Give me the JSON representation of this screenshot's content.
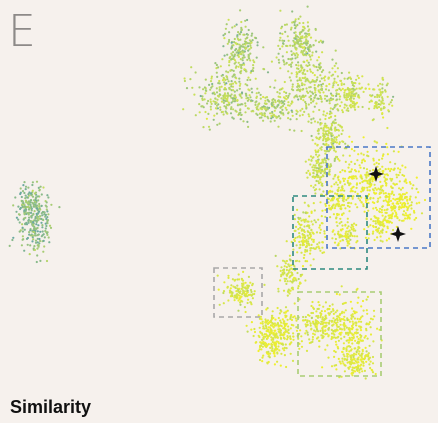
{
  "panel": {
    "letter": "E"
  },
  "legend": {
    "title": "Similarity"
  },
  "colors": {
    "background": "#f6f1ed",
    "low_similarity": "#6ba8a0",
    "mid_similarity": "#c8e05a",
    "high_similarity": "#f2f12a",
    "box_blue": "#4a78c6",
    "box_teal": "#2e8a80",
    "box_gray": "#a8a8a8",
    "box_green": "#a9cd74",
    "marker": "#111111"
  },
  "boxes": [
    {
      "name": "blue-dashed-box",
      "color_key": "box_blue"
    },
    {
      "name": "teal-dashed-box",
      "color_key": "box_teal"
    },
    {
      "name": "gray-dashed-box",
      "color_key": "box_gray"
    },
    {
      "name": "green-dashed-box",
      "color_key": "box_green"
    }
  ],
  "markers": [
    {
      "name": "star-marker-upper",
      "icon": "four-point-star-icon"
    },
    {
      "name": "star-marker-lower",
      "icon": "four-point-star-icon"
    }
  ]
}
